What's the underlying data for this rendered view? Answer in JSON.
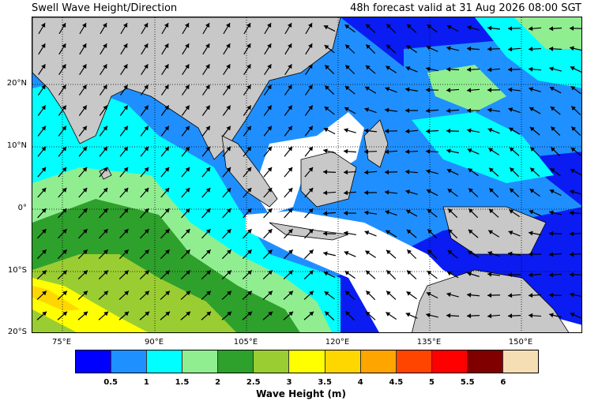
{
  "header": {
    "title_left": "Swell Wave Height/Direction",
    "title_right": "48h forecast valid at 31 Aug 2026 08:00 SGT"
  },
  "map": {
    "lat_labels": [
      "20°N",
      "10°N",
      "0°",
      "10°S",
      "20°S"
    ],
    "lon_labels": [
      "75°E",
      "90°E",
      "105°E",
      "120°E",
      "135°E",
      "150°E"
    ],
    "colors": {
      "land": "#c8c8c8",
      "calm_sea": "#ffffff",
      "grid": "#000000"
    }
  },
  "colorbar": {
    "label": "Wave Height (m)",
    "tick_labels": [
      "0.5",
      "1",
      "1.5",
      "2",
      "2.5",
      "3",
      "3.5",
      "4",
      "4.5",
      "5",
      "5.5",
      "6"
    ],
    "colors": [
      "#0000ff",
      "#1e90ff",
      "#00ffff",
      "#90ee90",
      "#2ea02c",
      "#9acd32",
      "#ffff00",
      "#ffd700",
      "#ffa500",
      "#ff4500",
      "#ff0000",
      "#800000",
      "#f5deb3"
    ]
  }
}
